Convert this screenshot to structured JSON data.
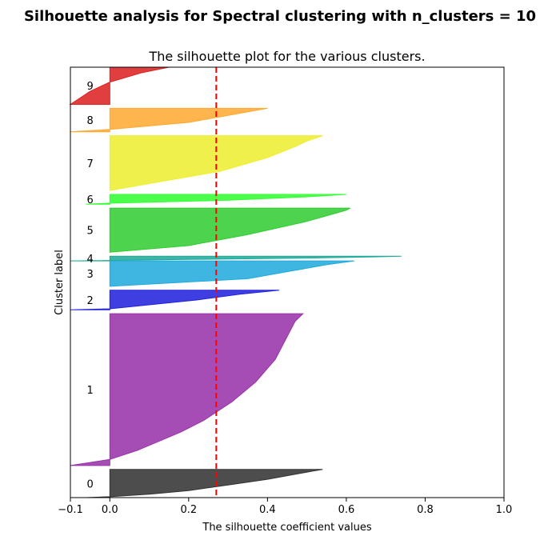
{
  "figure_title": "Silhouette analysis for Spectral clustering with n_clusters = 10",
  "chart_data": {
    "type": "area",
    "title": "The silhouette plot for the various clusters.",
    "xlabel": "The silhouette coefficient values",
    "ylabel": "Cluster label",
    "xlim": [
      -0.1,
      1.0
    ],
    "ylim": [
      0,
      1100
    ],
    "x_ticks": [
      -0.1,
      0.0,
      0.2,
      0.4,
      0.6,
      0.8,
      1.0
    ],
    "x_tick_labels": [
      "−0.1",
      "0.0",
      "0.2",
      "0.4",
      "0.6",
      "0.8",
      "1.0"
    ],
    "y_ticks_visible": false,
    "grid": false,
    "average_silhouette": 0.27,
    "average_line_color": "#ff0000",
    "clusters": [
      {
        "label": "0",
        "color": "#333333",
        "y_lower": 0,
        "y_upper": 72,
        "profile": [
          [
            0,
            -0.06
          ],
          [
            0.03,
            0.0
          ],
          [
            0.12,
            0.1
          ],
          [
            0.25,
            0.2
          ],
          [
            0.45,
            0.3
          ],
          [
            0.65,
            0.4
          ],
          [
            0.8,
            0.46
          ],
          [
            0.93,
            0.51
          ],
          [
            1.0,
            0.54
          ]
        ]
      },
      {
        "label": "1",
        "color": "#9933aa",
        "y_lower": 82,
        "y_upper": 470,
        "profile": [
          [
            0,
            -0.1
          ],
          [
            0.02,
            -0.05
          ],
          [
            0.04,
            0.0
          ],
          [
            0.1,
            0.07
          ],
          [
            0.22,
            0.18
          ],
          [
            0.3,
            0.24
          ],
          [
            0.42,
            0.31
          ],
          [
            0.55,
            0.37
          ],
          [
            0.7,
            0.42
          ],
          [
            0.85,
            0.45
          ],
          [
            0.95,
            0.47
          ],
          [
            1.0,
            0.49
          ]
        ]
      },
      {
        "label": "2",
        "color": "#2222dd",
        "y_lower": 480,
        "y_upper": 530,
        "profile": [
          [
            0,
            -0.1
          ],
          [
            0.05,
            0.0
          ],
          [
            0.5,
            0.22
          ],
          [
            0.8,
            0.33
          ],
          [
            1.0,
            0.43
          ]
        ]
      },
      {
        "label": "3",
        "color": "#22aadd",
        "y_lower": 540,
        "y_upper": 605,
        "profile": [
          [
            0,
            0.0
          ],
          [
            0.3,
            0.35
          ],
          [
            0.6,
            0.46
          ],
          [
            0.85,
            0.55
          ],
          [
            1.0,
            0.62
          ]
        ]
      },
      {
        "label": "4",
        "color": "#22aa99",
        "y_lower": 605,
        "y_upper": 617,
        "profile": [
          [
            0,
            -0.1
          ],
          [
            0.3,
            0.2
          ],
          [
            0.6,
            0.5
          ],
          [
            0.85,
            0.67
          ],
          [
            1.0,
            0.74
          ]
        ]
      },
      {
        "label": "5",
        "color": "#33cc33",
        "y_lower": 627,
        "y_upper": 740,
        "profile": [
          [
            0,
            0.0
          ],
          [
            0.15,
            0.2
          ],
          [
            0.4,
            0.35
          ],
          [
            0.7,
            0.5
          ],
          [
            0.85,
            0.56
          ],
          [
            0.95,
            0.6
          ],
          [
            1.0,
            0.61
          ]
        ]
      },
      {
        "label": "6",
        "color": "#33ff33",
        "y_lower": 750,
        "y_upper": 775,
        "profile": [
          [
            0,
            -0.06
          ],
          [
            0.1,
            0.0
          ],
          [
            0.4,
            0.3
          ],
          [
            0.75,
            0.5
          ],
          [
            1.0,
            0.6
          ]
        ]
      },
      {
        "label": "7",
        "color": "#eeee33",
        "y_lower": 785,
        "y_upper": 925,
        "profile": [
          [
            0,
            0.0
          ],
          [
            0.15,
            0.12
          ],
          [
            0.35,
            0.28
          ],
          [
            0.6,
            0.4
          ],
          [
            0.8,
            0.47
          ],
          [
            0.9,
            0.5
          ],
          [
            1.0,
            0.54
          ]
        ]
      },
      {
        "label": "8",
        "color": "#ffaa33",
        "y_lower": 935,
        "y_upper": 995,
        "profile": [
          [
            0,
            -0.1
          ],
          [
            0.1,
            0.0
          ],
          [
            0.4,
            0.2
          ],
          [
            0.7,
            0.3
          ],
          [
            1.0,
            0.4
          ]
        ]
      },
      {
        "label": "9",
        "color": "#dd2222",
        "y_lower": 1005,
        "y_upper": 1100,
        "profile": [
          [
            0,
            -0.1
          ],
          [
            0.35,
            -0.05
          ],
          [
            0.6,
            0.0
          ],
          [
            0.85,
            0.08
          ],
          [
            1.0,
            0.15
          ]
        ]
      }
    ]
  }
}
